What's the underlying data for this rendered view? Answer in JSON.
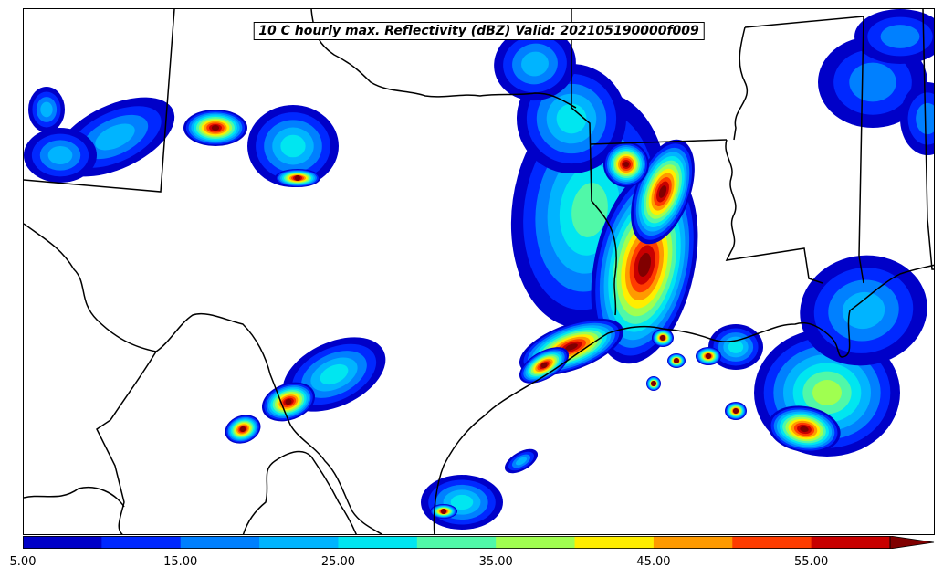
{
  "title": "10 C hourly max. Reflectivity (dBZ) Valid: 202105190000f009",
  "colorbar": {
    "levels": [
      5,
      10,
      15,
      20,
      25,
      30,
      35,
      40,
      45,
      50,
      55
    ],
    "colors": [
      "#0000c8",
      "#0028ff",
      "#0080ff",
      "#00b4ff",
      "#00e6f0",
      "#50f8a8",
      "#a0ff50",
      "#ffee00",
      "#ff9a00",
      "#ff3c00",
      "#c80000",
      "#800000"
    ],
    "extend": "max",
    "tick_labels": [
      "5.00",
      "15.00",
      "25.00",
      "35.00",
      "45.00",
      "55.00"
    ]
  },
  "map": {
    "region": "Southern United States and Gulf of Mexico coast",
    "boundaries": [
      "state borders",
      "national border",
      "coastline"
    ]
  }
}
